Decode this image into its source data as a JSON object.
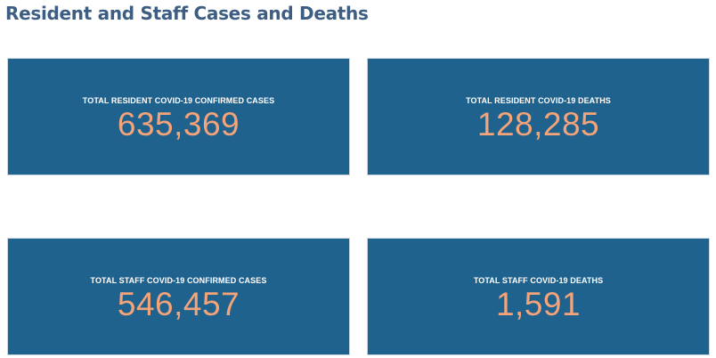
{
  "title": "Resident and Staff Cases and Deaths",
  "colors": {
    "title": "#3d5d82",
    "card_background": "#1f628e",
    "label_text": "#ffffff",
    "value_text": "#f5a378"
  },
  "cards": [
    {
      "label": "TOTAL RESIDENT COVID-19 CONFIRMED CASES",
      "value": "635,369"
    },
    {
      "label": "TOTAL RESIDENT COVID-19 DEATHS",
      "value": "128,285"
    },
    {
      "label": "TOTAL STAFF COVID-19 CONFIRMED CASES",
      "value": "546,457"
    },
    {
      "label": "TOTAL STAFF COVID-19 DEATHS",
      "value": "1,591"
    }
  ]
}
